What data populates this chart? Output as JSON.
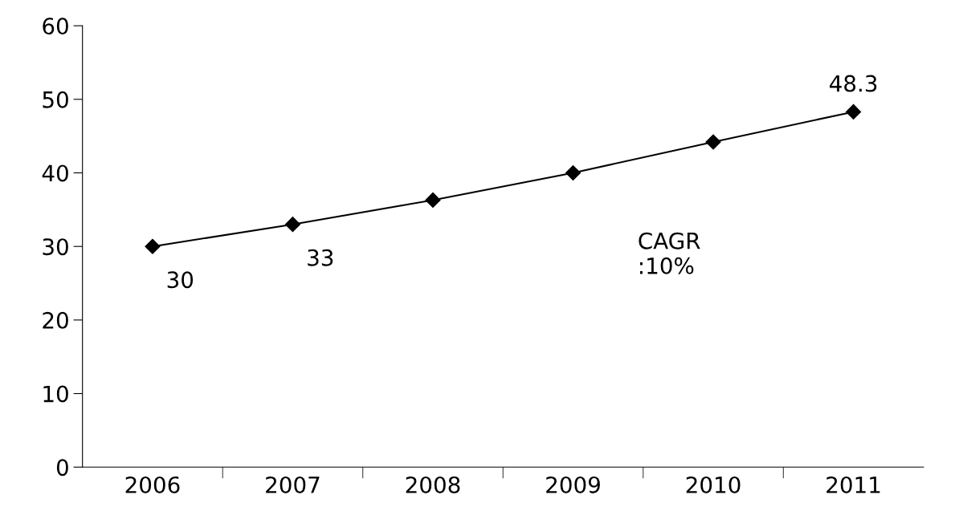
{
  "chart_data": {
    "type": "line",
    "categories": [
      "2006",
      "2007",
      "2008",
      "2009",
      "2010",
      "2011"
    ],
    "series": [
      {
        "color": "#000000",
        "values": [
          30,
          33,
          36.3,
          40,
          44.2,
          48.3
        ],
        "value_labels": [
          "30",
          "33",
          null,
          null,
          null,
          "48.3"
        ]
      }
    ],
    "ylim": [
      0,
      60
    ],
    "yticks": [
      0,
      10,
      20,
      30,
      40,
      50,
      60
    ],
    "marker": "diamond",
    "line_style": "solid",
    "grid": false,
    "legend": false,
    "annotations": [
      "CAGR\n:10%"
    ]
  }
}
